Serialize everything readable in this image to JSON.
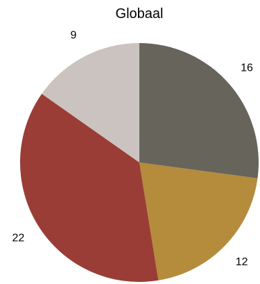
{
  "chart_data": {
    "type": "pie",
    "title": "Globaal",
    "start": "top, clockwise",
    "slices": [
      {
        "label": "16",
        "value": 16,
        "color": "#67645b"
      },
      {
        "label": "12",
        "value": 12,
        "color": "#b48c3c"
      },
      {
        "label": "22",
        "value": 22,
        "color": "#9a3d36"
      },
      {
        "label": "9",
        "value": 9,
        "color": "#cbc3bf"
      }
    ]
  }
}
